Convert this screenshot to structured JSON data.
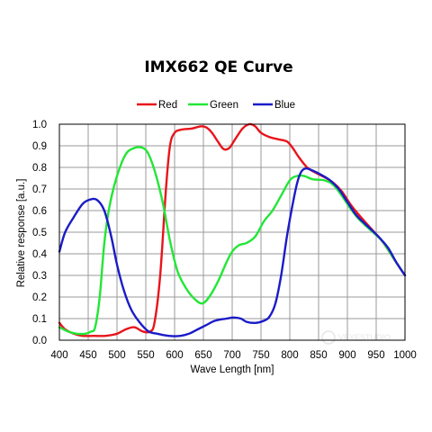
{
  "chart_data": {
    "type": "line",
    "title": "IMX662 QE Curve",
    "xlabel": "Wave Length [nm]",
    "ylabel": "Relative response [a.u.]",
    "xlim": [
      400,
      1000
    ],
    "ylim": [
      0,
      1.0
    ],
    "x_ticks": [
      "400",
      "450",
      "500",
      "550",
      "600",
      "650",
      "700",
      "750",
      "800",
      "850",
      "900",
      "950",
      "1000"
    ],
    "y_ticks": [
      "0.0",
      "0.1",
      "0.2",
      "0.3",
      "0.4",
      "0.5",
      "0.6",
      "0.7",
      "0.8",
      "0.9",
      "1.0"
    ],
    "grid": true,
    "legend_position": "top",
    "series": [
      {
        "name": "Red",
        "color": "#e8141b",
        "points": [
          [
            400,
            0.08
          ],
          [
            410,
            0.05
          ],
          [
            425,
            0.03
          ],
          [
            440,
            0.02
          ],
          [
            460,
            0.02
          ],
          [
            480,
            0.02
          ],
          [
            500,
            0.03
          ],
          [
            515,
            0.05
          ],
          [
            530,
            0.06
          ],
          [
            545,
            0.04
          ],
          [
            557,
            0.04
          ],
          [
            565,
            0.08
          ],
          [
            575,
            0.3
          ],
          [
            585,
            0.7
          ],
          [
            592,
            0.9
          ],
          [
            600,
            0.96
          ],
          [
            612,
            0.975
          ],
          [
            630,
            0.98
          ],
          [
            645,
            0.99
          ],
          [
            655,
            0.985
          ],
          [
            665,
            0.96
          ],
          [
            675,
            0.92
          ],
          [
            685,
            0.885
          ],
          [
            695,
            0.89
          ],
          [
            705,
            0.93
          ],
          [
            718,
            0.98
          ],
          [
            730,
            1.0
          ],
          [
            740,
            0.99
          ],
          [
            750,
            0.96
          ],
          [
            765,
            0.94
          ],
          [
            780,
            0.93
          ],
          [
            795,
            0.92
          ],
          [
            805,
            0.89
          ],
          [
            815,
            0.85
          ],
          [
            830,
            0.8
          ],
          [
            845,
            0.775
          ],
          [
            860,
            0.755
          ],
          [
            875,
            0.73
          ],
          [
            890,
            0.69
          ],
          [
            905,
            0.63
          ],
          [
            920,
            0.58
          ],
          [
            940,
            0.52
          ],
          [
            960,
            0.46
          ],
          [
            980,
            0.38
          ],
          [
            1000,
            0.3
          ]
        ]
      },
      {
        "name": "Green",
        "color": "#22e636",
        "points": [
          [
            400,
            0.06
          ],
          [
            415,
            0.04
          ],
          [
            430,
            0.03
          ],
          [
            445,
            0.03
          ],
          [
            455,
            0.04
          ],
          [
            462,
            0.06
          ],
          [
            470,
            0.2
          ],
          [
            478,
            0.45
          ],
          [
            487,
            0.62
          ],
          [
            500,
            0.76
          ],
          [
            515,
            0.86
          ],
          [
            530,
            0.89
          ],
          [
            545,
            0.89
          ],
          [
            555,
            0.86
          ],
          [
            567,
            0.77
          ],
          [
            580,
            0.63
          ],
          [
            592,
            0.46
          ],
          [
            605,
            0.32
          ],
          [
            620,
            0.24
          ],
          [
            635,
            0.19
          ],
          [
            648,
            0.17
          ],
          [
            660,
            0.2
          ],
          [
            675,
            0.27
          ],
          [
            690,
            0.36
          ],
          [
            700,
            0.41
          ],
          [
            712,
            0.44
          ],
          [
            725,
            0.45
          ],
          [
            740,
            0.48
          ],
          [
            755,
            0.55
          ],
          [
            770,
            0.6
          ],
          [
            785,
            0.67
          ],
          [
            800,
            0.74
          ],
          [
            812,
            0.76
          ],
          [
            825,
            0.76
          ],
          [
            840,
            0.745
          ],
          [
            860,
            0.74
          ],
          [
            875,
            0.72
          ],
          [
            890,
            0.67
          ],
          [
            905,
            0.61
          ],
          [
            920,
            0.56
          ],
          [
            940,
            0.51
          ],
          [
            960,
            0.46
          ],
          [
            980,
            0.38
          ],
          [
            1000,
            0.3
          ]
        ]
      },
      {
        "name": "Blue",
        "color": "#1b1bc8",
        "points": [
          [
            400,
            0.41
          ],
          [
            410,
            0.5
          ],
          [
            425,
            0.57
          ],
          [
            440,
            0.63
          ],
          [
            452,
            0.65
          ],
          [
            465,
            0.65
          ],
          [
            478,
            0.6
          ],
          [
            490,
            0.48
          ],
          [
            500,
            0.35
          ],
          [
            512,
            0.23
          ],
          [
            525,
            0.14
          ],
          [
            540,
            0.08
          ],
          [
            555,
            0.04
          ],
          [
            570,
            0.03
          ],
          [
            590,
            0.02
          ],
          [
            610,
            0.02
          ],
          [
            625,
            0.03
          ],
          [
            640,
            0.05
          ],
          [
            655,
            0.07
          ],
          [
            670,
            0.09
          ],
          [
            690,
            0.1
          ],
          [
            703,
            0.105
          ],
          [
            715,
            0.1
          ],
          [
            725,
            0.085
          ],
          [
            740,
            0.08
          ],
          [
            755,
            0.09
          ],
          [
            765,
            0.11
          ],
          [
            775,
            0.17
          ],
          [
            785,
            0.3
          ],
          [
            795,
            0.48
          ],
          [
            805,
            0.63
          ],
          [
            813,
            0.73
          ],
          [
            820,
            0.78
          ],
          [
            828,
            0.795
          ],
          [
            840,
            0.785
          ],
          [
            855,
            0.765
          ],
          [
            870,
            0.74
          ],
          [
            885,
            0.7
          ],
          [
            900,
            0.64
          ],
          [
            915,
            0.58
          ],
          [
            930,
            0.54
          ],
          [
            950,
            0.49
          ],
          [
            970,
            0.43
          ],
          [
            985,
            0.36
          ],
          [
            1000,
            0.3
          ]
        ]
      }
    ]
  },
  "watermark": "VEYESTUDIO"
}
